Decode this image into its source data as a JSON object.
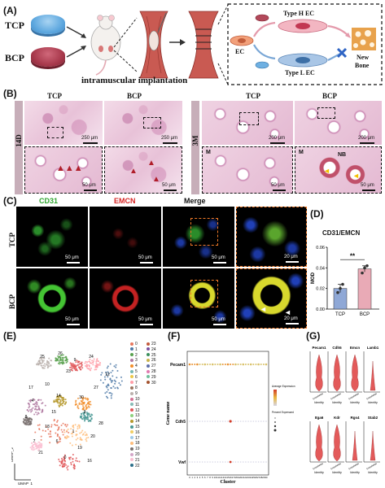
{
  "panels": {
    "A": "(A)",
    "B": "(B)",
    "C": "(C)",
    "D": "(D)",
    "E": "(E)",
    "F": "(F)",
    "G": "(G)"
  },
  "panelA": {
    "tcp": "TCP",
    "bcp": "BCP",
    "implant": "intramuscular implantation",
    "ec": "EC",
    "typeH": "Type H EC",
    "typeL": "Type L EC",
    "newbone1": "New",
    "newbone2": "Bone"
  },
  "panelB": {
    "tcp1": "TCP",
    "bcp1": "BCP",
    "tcp2": "TCP",
    "bcp2": "BCP",
    "d14": "14D",
    "m3": "3M",
    "s250a": "250 μm",
    "s250b": "250 μm",
    "s200a": "200 μm",
    "s200b": "200 μm",
    "s50a": "50 μm",
    "s50b": "50 μm",
    "s50c": "50 μm",
    "s50d": "50 μm",
    "m1": "M",
    "m2": "M",
    "nb": "NB"
  },
  "panelC": {
    "cd31": "CD31",
    "emcn": "EMCN",
    "merge": "Merge",
    "tcp": "TCP",
    "bcp": "BCP",
    "s1": "50 μm",
    "s2": "50 μm",
    "s3": "50 μm",
    "s4": "20 μm",
    "s5": "50 μm",
    "s6": "50 μm",
    "s7": "50 μm",
    "s8": "20 μm"
  },
  "chart_data": {
    "type": "bar",
    "title": "CD31/EMCN",
    "ylabel": "MOD",
    "categories": [
      "TCP",
      "BCP"
    ],
    "values": [
      0.02,
      0.039
    ],
    "errors": [
      0.004,
      0.003
    ],
    "points": [
      [
        0.016,
        0.02,
        0.024
      ],
      [
        0.035,
        0.04,
        0.042
      ]
    ],
    "ylim": [
      0,
      0.06
    ],
    "yticks": [
      "0.00",
      "0.02",
      "0.04",
      "0.06"
    ],
    "significance": "**",
    "colors": {
      "TCP": "#8fa8d6",
      "BCP": "#e9aab6"
    }
  },
  "panelE": {
    "xlabel": "UMAP_1",
    "ylabel": "UMAP_2",
    "legend_col1": [
      "0",
      "1",
      "2",
      "3",
      "4",
      "5",
      "6",
      "7",
      "8",
      "9",
      "10",
      "11",
      "12",
      "13",
      "14",
      "15",
      "16",
      "17",
      "18",
      "19",
      "20",
      "21",
      "22"
    ],
    "legend_col2": [
      "23",
      "24",
      "25",
      "26",
      "27",
      "28",
      "29",
      "30"
    ],
    "colors": [
      "#e8785f",
      "#4e79a7",
      "#59a14f",
      "#b07aa1",
      "#f28e2b",
      "#76b7b2",
      "#edc948",
      "#ff9da7",
      "#9c755f",
      "#bab0ac",
      "#d37295",
      "#86bcb6",
      "#e15759",
      "#8cd17d",
      "#b6992d",
      "#499894",
      "#f1ce63",
      "#a0cbe8",
      "#ffbe7d",
      "#79706e",
      "#d4a6c8",
      "#fabfd2",
      "#2b6f8a",
      "#c35a3c",
      "#7b4fa0",
      "#3a8f5c",
      "#c9b24b",
      "#5d6ea8",
      "#e07ab0",
      "#6fbf9a",
      "#a3522e"
    ],
    "cluster_labels": [
      "25",
      "26",
      "9",
      "24",
      "12",
      "4",
      "14",
      "30",
      "18",
      "1",
      "7",
      "0",
      "3",
      "8",
      "27",
      "23",
      "15",
      "21",
      "19",
      "28",
      "17",
      "16",
      "6",
      "10",
      "20"
    ]
  },
  "panelF": {
    "ylabel": "Gene name",
    "xlabel": "Cluster",
    "genes": [
      "Pecam1",
      "Cdh5",
      "Vwf"
    ],
    "legend1_title": "Average Expression",
    "legend2_title": "Percent Expressed"
  },
  "panelG": {
    "genes_row1": [
      "Pecam1",
      "Cdh5",
      "Emcn",
      "Lamb1"
    ],
    "genes_row2": [
      "Itga6",
      "Kdr",
      "Rgs4",
      "Stab2"
    ],
    "xlabel": "Identity",
    "xtick": "Endothelial"
  }
}
